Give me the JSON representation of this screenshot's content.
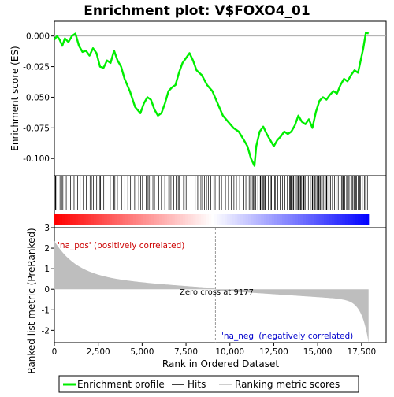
{
  "chart_data": {
    "type": "line",
    "title": "Enrichment plot: V$FOXO4_01",
    "xlabel": "Rank in Ordered Dataset",
    "ylabel_top": "Enrichment score (ES)",
    "ylabel_bottom": "Ranked list metric (PreRanked)",
    "x_ticks": [
      0,
      2500,
      5000,
      7500,
      10000,
      12500,
      15000,
      17500
    ],
    "x_tick_labels": [
      "0",
      "2,500",
      "5,000",
      "7,500",
      "10,000",
      "12,500",
      "15,000",
      "17,500"
    ],
    "xlim": [
      0,
      18900
    ],
    "es_ylim": [
      -0.114,
      0.012
    ],
    "es_ticks": [
      0.0,
      -0.025,
      -0.05,
      -0.075,
      -0.1
    ],
    "es_tick_labels": [
      "0.000",
      "-0.025",
      "-0.050",
      "-0.075",
      "-0.100"
    ],
    "metric_ylim": [
      -2.6,
      3.0
    ],
    "metric_ticks": [
      3,
      2,
      1,
      0,
      -1,
      -2
    ],
    "metric_tick_labels": [
      "3",
      "2",
      "1",
      "0",
      "-1",
      "-2"
    ],
    "zero_cross_rank": 9177,
    "zero_cross_label": "Zero cross at 9177",
    "pos_label": "'na_pos' (positively correlated)",
    "neg_label": "'na_neg' (negatively correlated)",
    "n_genes": 17900,
    "enrichment_profile": {
      "name": "Enrichment profile",
      "color": "#00ee00",
      "x": [
        0,
        150,
        300,
        450,
        600,
        800,
        1000,
        1200,
        1400,
        1600,
        1800,
        2000,
        2200,
        2400,
        2600,
        2800,
        3000,
        3200,
        3400,
        3600,
        3800,
        4000,
        4300,
        4600,
        4900,
        5100,
        5300,
        5500,
        5700,
        5900,
        6100,
        6300,
        6500,
        6700,
        6900,
        7100,
        7300,
        7500,
        7700,
        7900,
        8100,
        8400,
        8700,
        9000,
        9300,
        9600,
        9900,
        10200,
        10500,
        10800,
        11000,
        11200,
        11400,
        11500,
        11700,
        11900,
        12100,
        12300,
        12500,
        12700,
        12900,
        13100,
        13300,
        13500,
        13700,
        13900,
        14100,
        14300,
        14500,
        14700,
        14900,
        15100,
        15300,
        15500,
        15700,
        15900,
        16100,
        16300,
        16500,
        16700,
        16900,
        17100,
        17300,
        17450,
        17600,
        17750,
        17900
      ],
      "y": [
        -0.003,
        0.0,
        -0.003,
        -0.008,
        -0.002,
        -0.005,
        0.0,
        0.002,
        -0.008,
        -0.013,
        -0.012,
        -0.016,
        -0.01,
        -0.014,
        -0.025,
        -0.026,
        -0.02,
        -0.022,
        -0.012,
        -0.02,
        -0.025,
        -0.035,
        -0.045,
        -0.058,
        -0.063,
        -0.055,
        -0.05,
        -0.052,
        -0.06,
        -0.065,
        -0.063,
        -0.055,
        -0.045,
        -0.042,
        -0.04,
        -0.03,
        -0.022,
        -0.018,
        -0.014,
        -0.02,
        -0.028,
        -0.032,
        -0.04,
        -0.045,
        -0.055,
        -0.065,
        -0.07,
        -0.075,
        -0.078,
        -0.085,
        -0.09,
        -0.1,
        -0.106,
        -0.09,
        -0.078,
        -0.074,
        -0.08,
        -0.085,
        -0.09,
        -0.085,
        -0.082,
        -0.078,
        -0.08,
        -0.078,
        -0.073,
        -0.065,
        -0.07,
        -0.072,
        -0.068,
        -0.075,
        -0.062,
        -0.053,
        -0.05,
        -0.052,
        -0.048,
        -0.045,
        -0.047,
        -0.04,
        -0.035,
        -0.037,
        -0.032,
        -0.028,
        -0.03,
        -0.02,
        -0.01,
        0.003,
        0.002
      ]
    },
    "hits_legend": "Hits",
    "metric_legend": "Ranking metric scores",
    "metric_color": "#bebebe"
  }
}
